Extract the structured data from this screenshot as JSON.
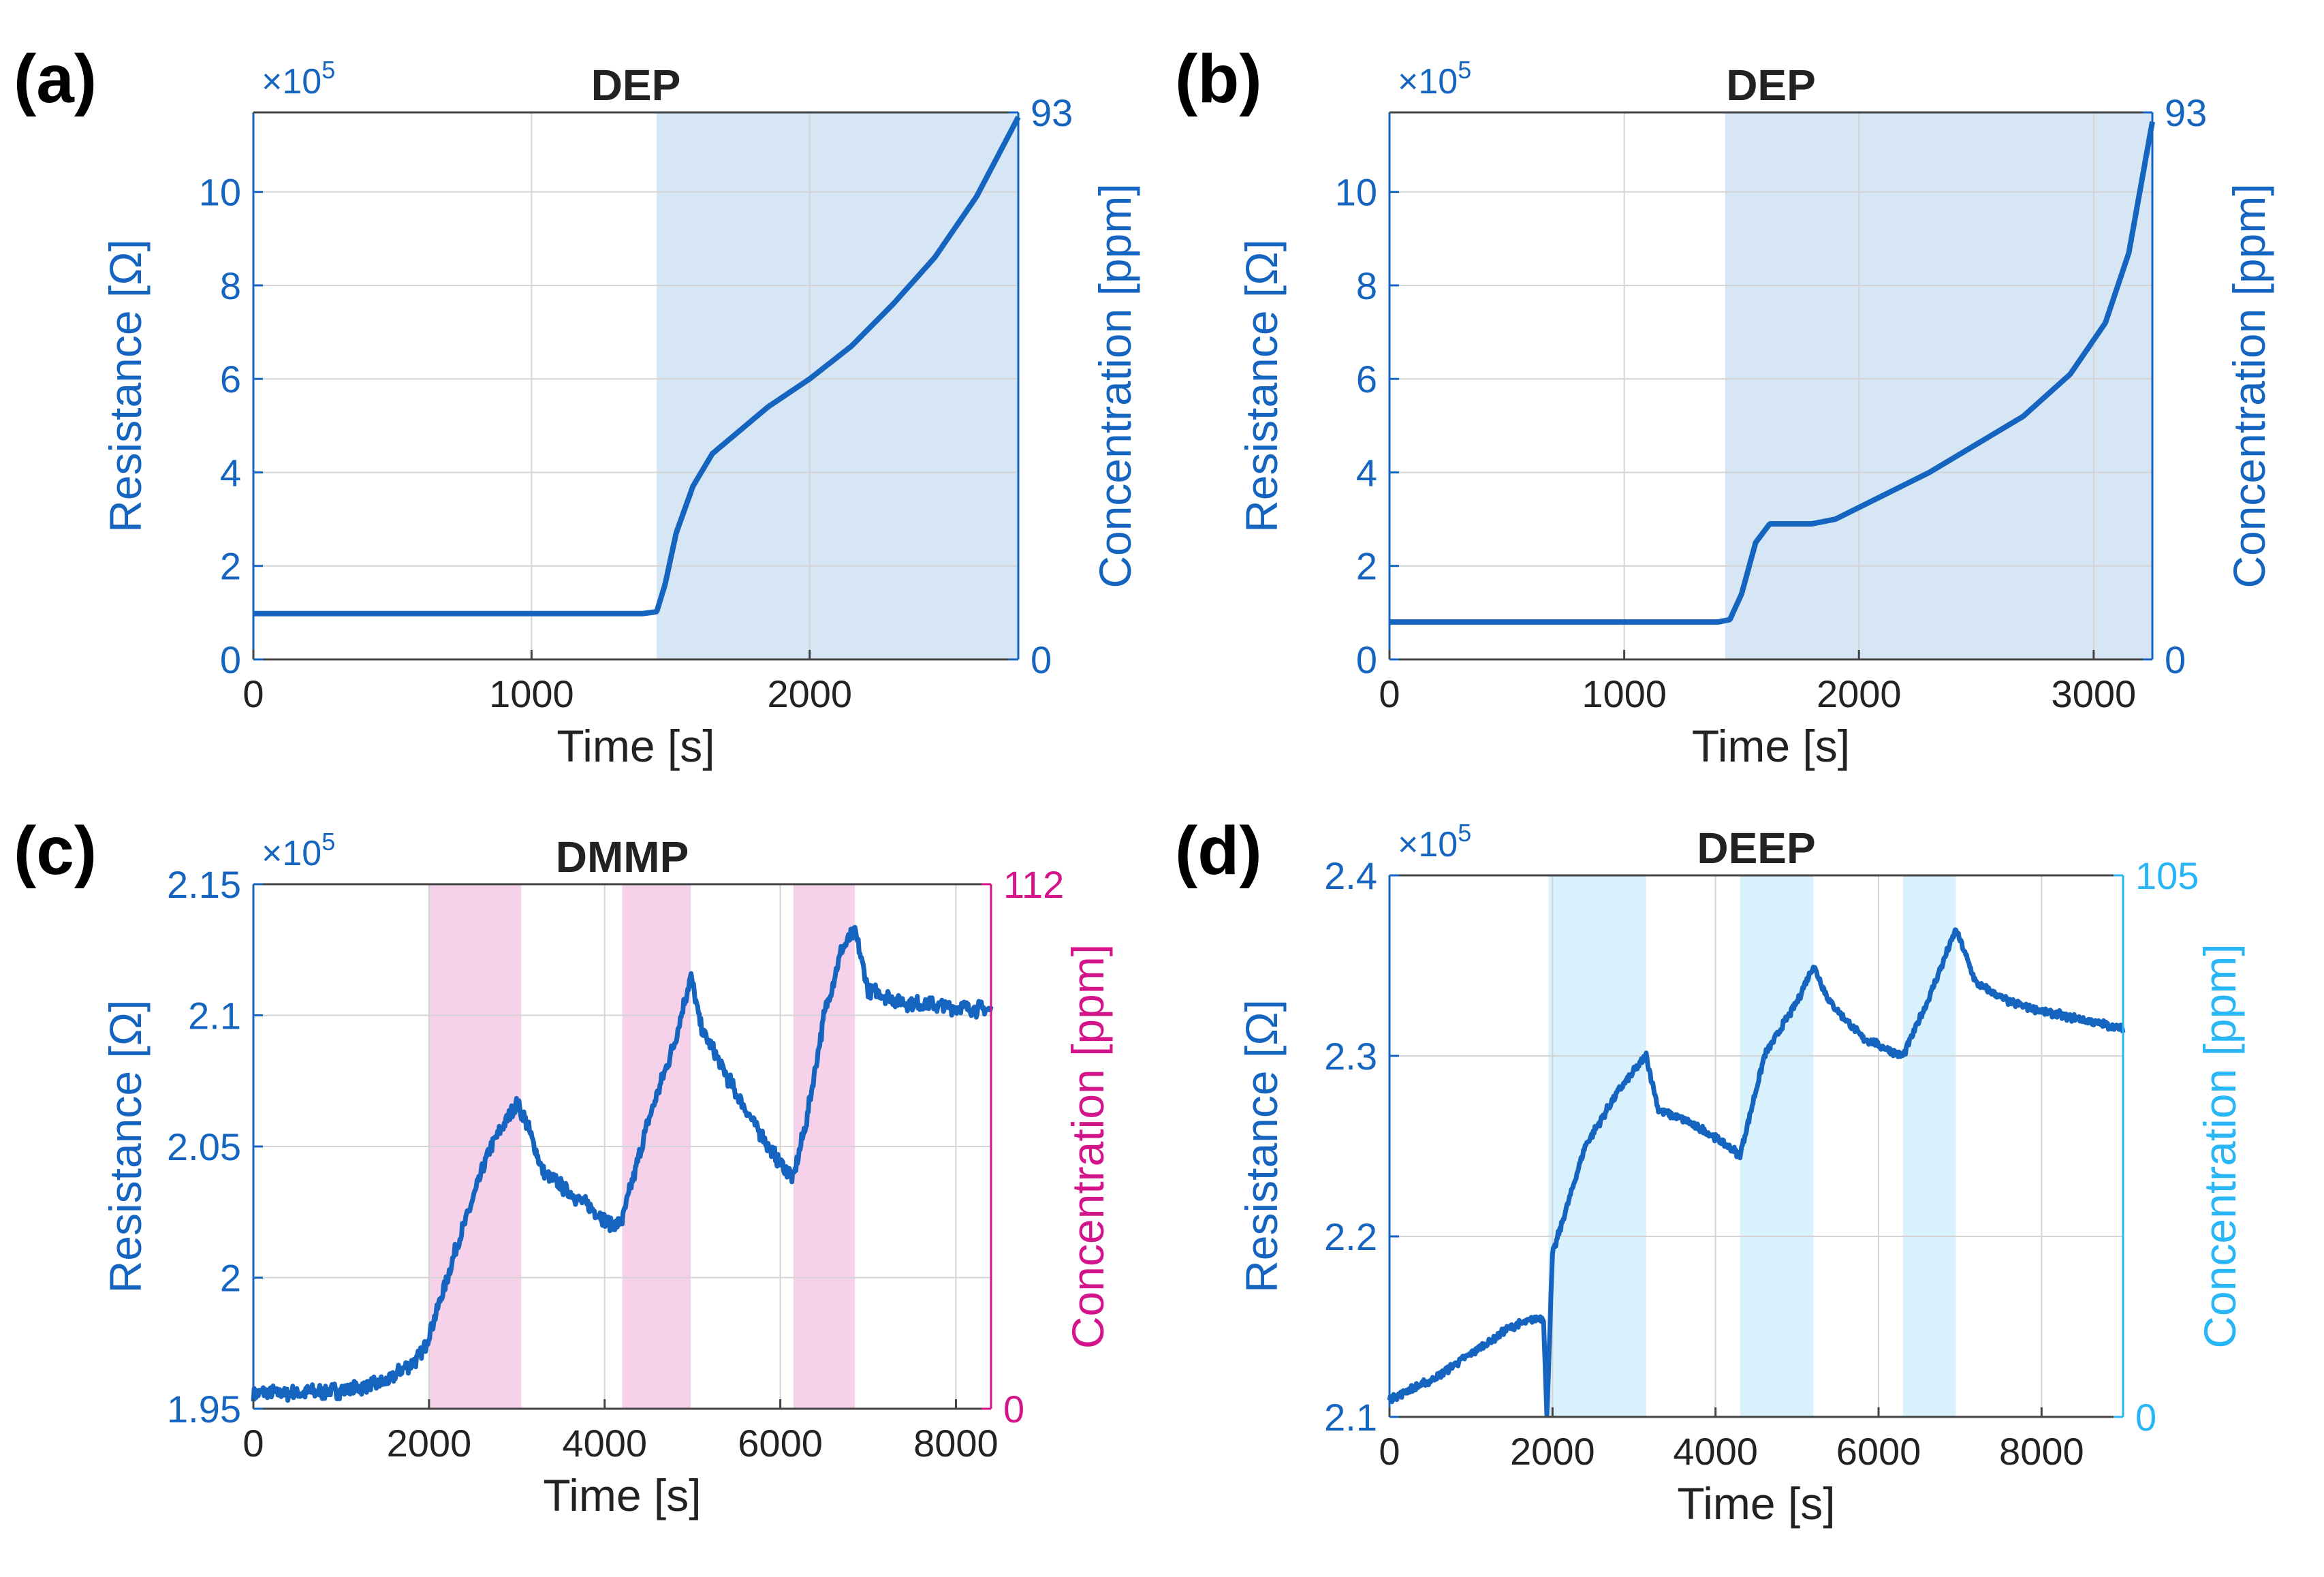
{
  "colors": {
    "resistance": "#1565c0",
    "dep": "#1565c0",
    "dmmp": "#d4148a",
    "deep": "#29b6f6",
    "dep_shade": "#d6e6f5",
    "dmmp_shade": "#f6d2ea",
    "deep_shade": "#d9f1fd",
    "grid": "#d4d4d4",
    "text_black": "#222222"
  },
  "chart_data": [
    {
      "panel": "(a)",
      "type": "line",
      "title": "DEP",
      "exponent_label": "×10",
      "exponent_power": "5",
      "xlabel": "Time [s]",
      "ylabel": "Resistance [Ω]",
      "y2label": "Concentration [ppm]",
      "xlim": [
        0,
        2750
      ],
      "ylim": [
        0,
        11.7
      ],
      "xticks": [
        0,
        1000,
        2000
      ],
      "xtick_labels": [
        "0",
        "1000",
        "2000"
      ],
      "yticks": [
        0,
        2,
        4,
        6,
        8,
        10
      ],
      "ytick_labels": [
        "0",
        "2",
        "4",
        "6",
        "8",
        "10"
      ],
      "y2ticks": [
        0,
        93
      ],
      "y2tick_labels": [
        "0",
        "93"
      ],
      "conc_color_key": "dep",
      "shade_color_key": "dep_shade",
      "exposures": [
        [
          1450,
          2750
        ]
      ],
      "noise": 0,
      "series": [
        {
          "name": "Resistance",
          "x": [
            0,
            500,
            1000,
            1400,
            1450,
            1480,
            1520,
            1580,
            1650,
            1750,
            1850,
            2000,
            2150,
            2300,
            2450,
            2600,
            2750
          ],
          "y": [
            0.98,
            0.98,
            0.98,
            0.98,
            1.02,
            1.6,
            2.7,
            3.7,
            4.4,
            4.9,
            5.4,
            6.0,
            6.7,
            7.6,
            8.6,
            9.9,
            11.6
          ]
        }
      ]
    },
    {
      "panel": "(b)",
      "type": "line",
      "title": "DEP",
      "exponent_label": "×10",
      "exponent_power": "5",
      "xlabel": "Time [s]",
      "ylabel": "Resistance [Ω]",
      "y2label": "Concentration [ppm]",
      "xlim": [
        0,
        3250
      ],
      "ylim": [
        0,
        11.7
      ],
      "xticks": [
        0,
        1000,
        2000,
        3000
      ],
      "xtick_labels": [
        "0",
        "1000",
        "2000",
        "3000"
      ],
      "yticks": [
        0,
        2,
        4,
        6,
        8,
        10
      ],
      "ytick_labels": [
        "0",
        "2",
        "4",
        "6",
        "8",
        "10"
      ],
      "y2ticks": [
        0,
        93
      ],
      "y2tick_labels": [
        "0",
        "93"
      ],
      "conc_color_key": "dep",
      "shade_color_key": "dep_shade",
      "exposures": [
        [
          1430,
          3250
        ]
      ],
      "noise": 0,
      "series": [
        {
          "name": "Resistance",
          "x": [
            0,
            500,
            1000,
            1400,
            1450,
            1500,
            1560,
            1620,
            1700,
            1800,
            1900,
            2100,
            2300,
            2500,
            2700,
            2900,
            3050,
            3150,
            3250
          ],
          "y": [
            0.8,
            0.8,
            0.8,
            0.8,
            0.85,
            1.4,
            2.5,
            2.9,
            2.9,
            2.9,
            3.0,
            3.5,
            4.0,
            4.6,
            5.2,
            6.1,
            7.2,
            8.7,
            11.5
          ]
        }
      ]
    },
    {
      "panel": "(c)",
      "type": "line",
      "title": "DMMP",
      "exponent_label": "×10",
      "exponent_power": "5",
      "xlabel": "Time [s]",
      "ylabel": "Resistance [Ω]",
      "y2label": "Concentration [ppm]",
      "xlim": [
        0,
        8400
      ],
      "ylim": [
        1.95,
        2.15
      ],
      "xticks": [
        0,
        2000,
        4000,
        6000,
        8000
      ],
      "xtick_labels": [
        "0",
        "2000",
        "4000",
        "6000",
        "8000"
      ],
      "yticks": [
        1.95,
        2.0,
        2.05,
        2.1,
        2.15
      ],
      "ytick_labels": [
        "1.95",
        "2",
        "2.05",
        "2.1",
        "2.15"
      ],
      "y2ticks": [
        0,
        112
      ],
      "y2tick_labels": [
        "0",
        "112"
      ],
      "conc_color_key": "dmmp",
      "shade_color_key": "dmmp_shade",
      "exposures": [
        [
          2000,
          3050
        ],
        [
          4200,
          4980
        ],
        [
          6150,
          6850
        ]
      ],
      "noise": 0.004,
      "series": [
        {
          "name": "Resistance",
          "x": [
            0,
            500,
            1000,
            1500,
            1900,
            2000,
            2300,
            2700,
            3000,
            3100,
            3300,
            3700,
            4100,
            4200,
            4500,
            4800,
            4980,
            5100,
            5500,
            5900,
            6150,
            6300,
            6500,
            6700,
            6850,
            7000,
            7400,
            8000,
            8400
          ],
          "y": [
            1.956,
            1.956,
            1.957,
            1.96,
            1.97,
            1.978,
            2.01,
            2.05,
            2.066,
            2.06,
            2.04,
            2.03,
            2.02,
            2.022,
            2.06,
            2.09,
            2.115,
            2.095,
            2.07,
            2.048,
            2.038,
            2.06,
            2.1,
            2.125,
            2.132,
            2.11,
            2.105,
            2.103,
            2.102
          ]
        }
      ]
    },
    {
      "panel": "(d)",
      "type": "line",
      "title": "DEEP",
      "exponent_label": "×10",
      "exponent_power": "5",
      "xlabel": "Time [s]",
      "ylabel": "Resistance [Ω]",
      "y2label": "Concentration [ppm]",
      "xlim": [
        0,
        9000
      ],
      "ylim": [
        2.1,
        2.4
      ],
      "xticks": [
        0,
        2000,
        4000,
        6000,
        8000
      ],
      "xtick_labels": [
        "0",
        "2000",
        "4000",
        "6000",
        "8000"
      ],
      "yticks": [
        2.1,
        2.2,
        2.3,
        2.4
      ],
      "ytick_labels": [
        "2.1",
        "2.2",
        "2.3",
        "2.4"
      ],
      "y2ticks": [
        0,
        105
      ],
      "y2tick_labels": [
        "0",
        "105"
      ],
      "conc_color_key": "deep",
      "shade_color_key": "deep_shade",
      "exposures": [
        [
          1950,
          3150
        ],
        [
          4300,
          5200
        ],
        [
          6300,
          6950
        ]
      ],
      "noise": 0.003,
      "series": [
        {
          "name": "Resistance",
          "x": [
            0,
            500,
            1000,
            1500,
            1850,
            1890,
            1930,
            2000,
            2400,
            2800,
            3150,
            3300,
            3600,
            4000,
            4300,
            4600,
            5000,
            5200,
            5400,
            5800,
            6300,
            6600,
            6950,
            7200,
            7600,
            8000,
            8500,
            9000
          ],
          "y": [
            2.11,
            2.12,
            2.135,
            2.15,
            2.155,
            2.155,
            2.1,
            2.19,
            2.25,
            2.28,
            2.3,
            2.27,
            2.265,
            2.255,
            2.245,
            2.3,
            2.33,
            2.35,
            2.33,
            2.31,
            2.3,
            2.33,
            2.37,
            2.34,
            2.33,
            2.325,
            2.32,
            2.315
          ]
        }
      ]
    }
  ]
}
